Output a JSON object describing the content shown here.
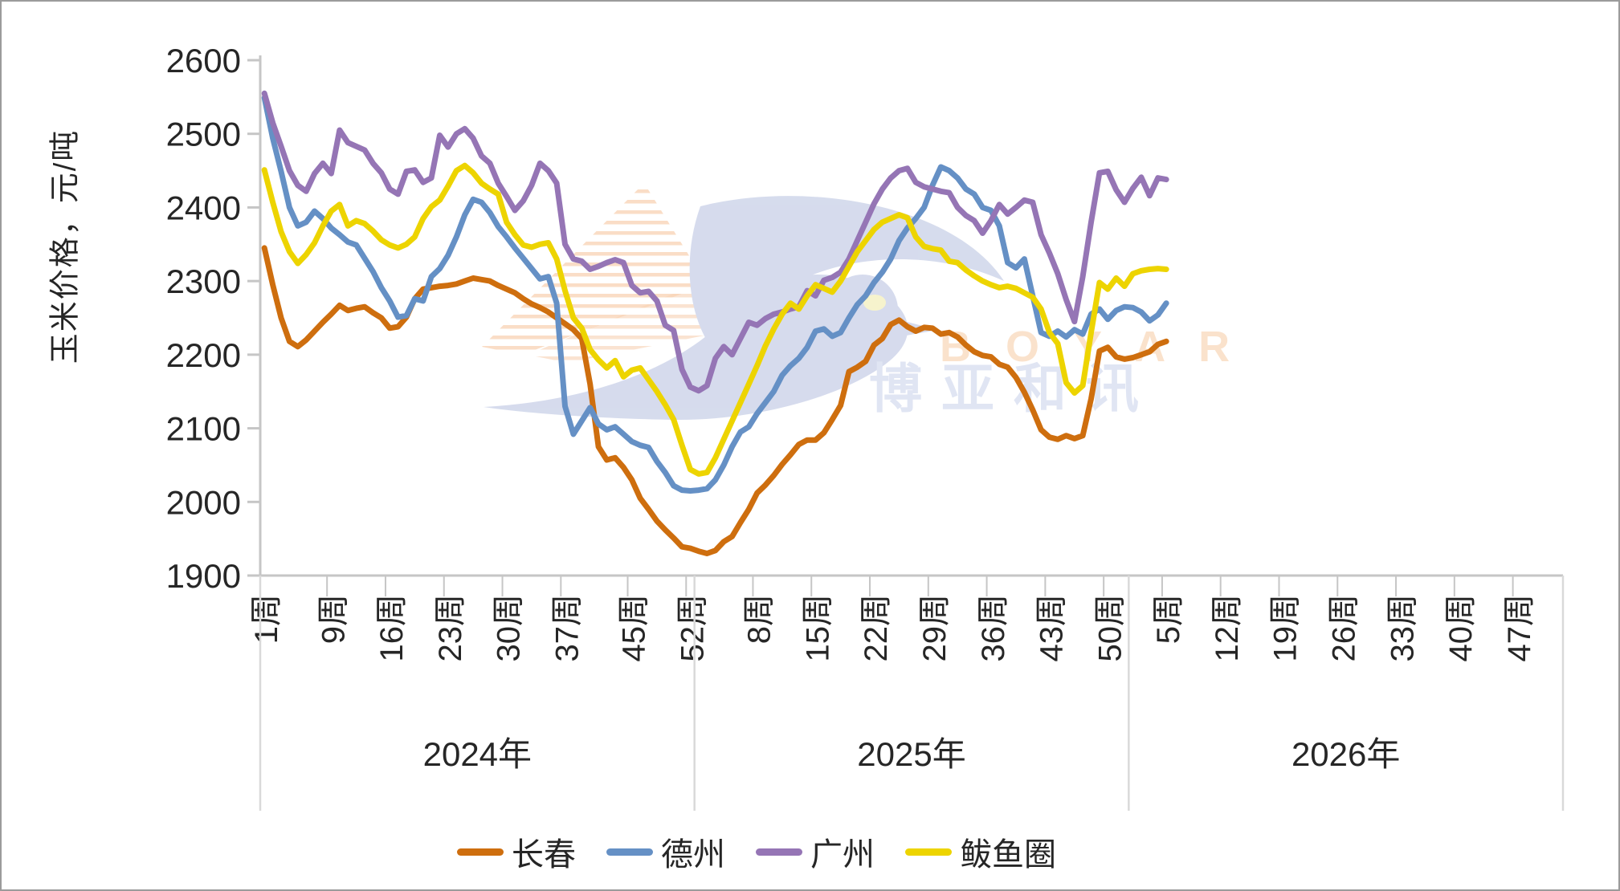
{
  "watermark": {
    "letters": "B O Y A R",
    "cjk_text": "博亚和讯",
    "letters_color": "#F6C79B",
    "cjk_color": "#C3CDE9",
    "bird_color": "#AEB9DC",
    "wing_hatch_color": "#F0A468",
    "eye_color": "#EFE89C"
  },
  "chart_data": {
    "type": "line",
    "ylabel": "玉米价格，元/吨",
    "ylim": [
      1900,
      2600
    ],
    "ytick_labels": [
      "2600",
      "2500",
      "2400",
      "2300",
      "2200",
      "2100",
      "2000",
      "1900"
    ],
    "grid": "off",
    "legend_position": "bottom",
    "axis_color": "#C6C6C6",
    "separator_color": "#D9D9D9",
    "label_color": "#262626",
    "years": [
      {
        "label": "2024年",
        "weeks_in_year": 52,
        "week_tick_labels": [
          "1周",
          "9周",
          "16周",
          "23周",
          "30周",
          "37周",
          "45周",
          "52周"
        ]
      },
      {
        "label": "2025年",
        "weeks_in_year": 52,
        "week_tick_labels": [
          "8周",
          "15周",
          "22周",
          "29周",
          "36周",
          "43周",
          "50周"
        ]
      },
      {
        "label": "2026年",
        "weeks_in_year": 52,
        "week_tick_labels": [
          "5周",
          "12周",
          "19周",
          "26周",
          "33周",
          "40周",
          "47周"
        ]
      }
    ],
    "series": [
      {
        "name": "长春",
        "color": "#CE6E0E",
        "values_2024": [
          2345,
          2295,
          2250,
          2218,
          2211,
          2220,
          2232,
          2244,
          2255,
          2267,
          2260,
          2263,
          2265,
          2257,
          2250,
          2236,
          2238,
          2251,
          2276,
          2289,
          2291,
          2293,
          2294,
          2296,
          2300,
          2304,
          2302,
          2300,
          2294,
          2289,
          2284,
          2276,
          2269,
          2264,
          2258,
          2250,
          2242,
          2234,
          2222,
          2160,
          2075,
          2057,
          2060,
          2047,
          2030,
          2005,
          1990,
          1974,
          1962,
          1951,
          1939,
          1937
        ],
        "values_2025": [
          1933,
          1930,
          1934,
          1946,
          1953,
          1972,
          1990,
          2012,
          2023,
          2036,
          2051,
          2064,
          2078,
          2084,
          2084,
          2094,
          2112,
          2131,
          2177,
          2183,
          2191,
          2213,
          2222,
          2241,
          2247,
          2238,
          2232,
          2237,
          2236,
          2228,
          2230,
          2224,
          2213,
          2204,
          2199,
          2197,
          2187,
          2183,
          2169,
          2149,
          2125,
          2098,
          2088,
          2085,
          2090,
          2086,
          2090,
          2140,
          2205,
          2210,
          2197,
          2194
        ],
        "values_2026": [
          2196,
          2200,
          2204,
          2214,
          2218
        ]
      },
      {
        "name": "德州",
        "color": "#6590C5",
        "values_2024": [
          2549,
          2494,
          2449,
          2400,
          2375,
          2380,
          2395,
          2385,
          2372,
          2363,
          2353,
          2349,
          2331,
          2313,
          2291,
          2273,
          2251,
          2253,
          2276,
          2273,
          2306,
          2317,
          2335,
          2360,
          2390,
          2411,
          2407,
          2393,
          2374,
          2360,
          2345,
          2331,
          2317,
          2303,
          2306,
          2270,
          2130,
          2092,
          2110,
          2128,
          2106,
          2098,
          2102,
          2092,
          2082,
          2077,
          2074,
          2055,
          2040,
          2022,
          2016,
          2015
        ],
        "values_2025": [
          2016,
          2018,
          2030,
          2050,
          2075,
          2095,
          2102,
          2120,
          2135,
          2150,
          2172,
          2185,
          2195,
          2210,
          2232,
          2235,
          2225,
          2230,
          2250,
          2268,
          2280,
          2298,
          2312,
          2330,
          2355,
          2372,
          2385,
          2400,
          2430,
          2455,
          2450,
          2440,
          2425,
          2418,
          2400,
          2396,
          2375,
          2325,
          2318,
          2330,
          2280,
          2230,
          2225,
          2232,
          2224,
          2234,
          2228,
          2255,
          2262,
          2248,
          2260,
          2265
        ],
        "values_2026": [
          2264,
          2258,
          2246,
          2254,
          2270
        ]
      },
      {
        "name": "广州",
        "color": "#9575B5",
        "values_2024": [
          2555,
          2515,
          2483,
          2450,
          2430,
          2422,
          2446,
          2460,
          2446,
          2505,
          2488,
          2483,
          2478,
          2460,
          2447,
          2425,
          2418,
          2449,
          2451,
          2434,
          2440,
          2498,
          2482,
          2500,
          2507,
          2494,
          2470,
          2460,
          2433,
          2415,
          2396,
          2409,
          2430,
          2460,
          2450,
          2433,
          2350,
          2330,
          2327,
          2316,
          2320,
          2325,
          2329,
          2325,
          2294,
          2284,
          2286,
          2273,
          2240,
          2233,
          2180,
          2156
        ],
        "values_2025": [
          2151,
          2158,
          2195,
          2211,
          2200,
          2222,
          2244,
          2240,
          2249,
          2255,
          2258,
          2262,
          2265,
          2287,
          2280,
          2301,
          2305,
          2312,
          2330,
          2355,
          2380,
          2405,
          2425,
          2440,
          2450,
          2453,
          2434,
          2428,
          2425,
          2422,
          2420,
          2400,
          2389,
          2382,
          2365,
          2382,
          2404,
          2391,
          2400,
          2410,
          2407,
          2363,
          2338,
          2310,
          2275,
          2245,
          2306,
          2380,
          2447,
          2449,
          2424,
          2407
        ],
        "values_2026": [
          2426,
          2441,
          2416,
          2440,
          2438
        ]
      },
      {
        "name": "鲅鱼圈",
        "color": "#EDD400",
        "values_2024": [
          2451,
          2407,
          2367,
          2340,
          2324,
          2336,
          2352,
          2375,
          2395,
          2404,
          2375,
          2382,
          2378,
          2368,
          2356,
          2349,
          2345,
          2350,
          2360,
          2385,
          2401,
          2410,
          2429,
          2450,
          2457,
          2447,
          2433,
          2425,
          2418,
          2380,
          2363,
          2349,
          2346,
          2350,
          2352,
          2330,
          2287,
          2250,
          2236,
          2207,
          2193,
          2182,
          2192,
          2170,
          2179,
          2182,
          2166,
          2150,
          2132,
          2112,
          2077,
          2044
        ],
        "values_2025": [
          2038,
          2040,
          2060,
          2085,
          2110,
          2135,
          2160,
          2185,
          2212,
          2235,
          2255,
          2270,
          2262,
          2280,
          2295,
          2290,
          2285,
          2300,
          2320,
          2340,
          2355,
          2370,
          2380,
          2385,
          2390,
          2386,
          2360,
          2347,
          2344,
          2342,
          2327,
          2325,
          2315,
          2307,
          2300,
          2295,
          2291,
          2293,
          2290,
          2284,
          2278,
          2262,
          2230,
          2215,
          2162,
          2148,
          2158,
          2230,
          2298,
          2289,
          2304,
          2293
        ],
        "values_2026": [
          2310,
          2314,
          2316,
          2317,
          2316
        ]
      }
    ]
  }
}
